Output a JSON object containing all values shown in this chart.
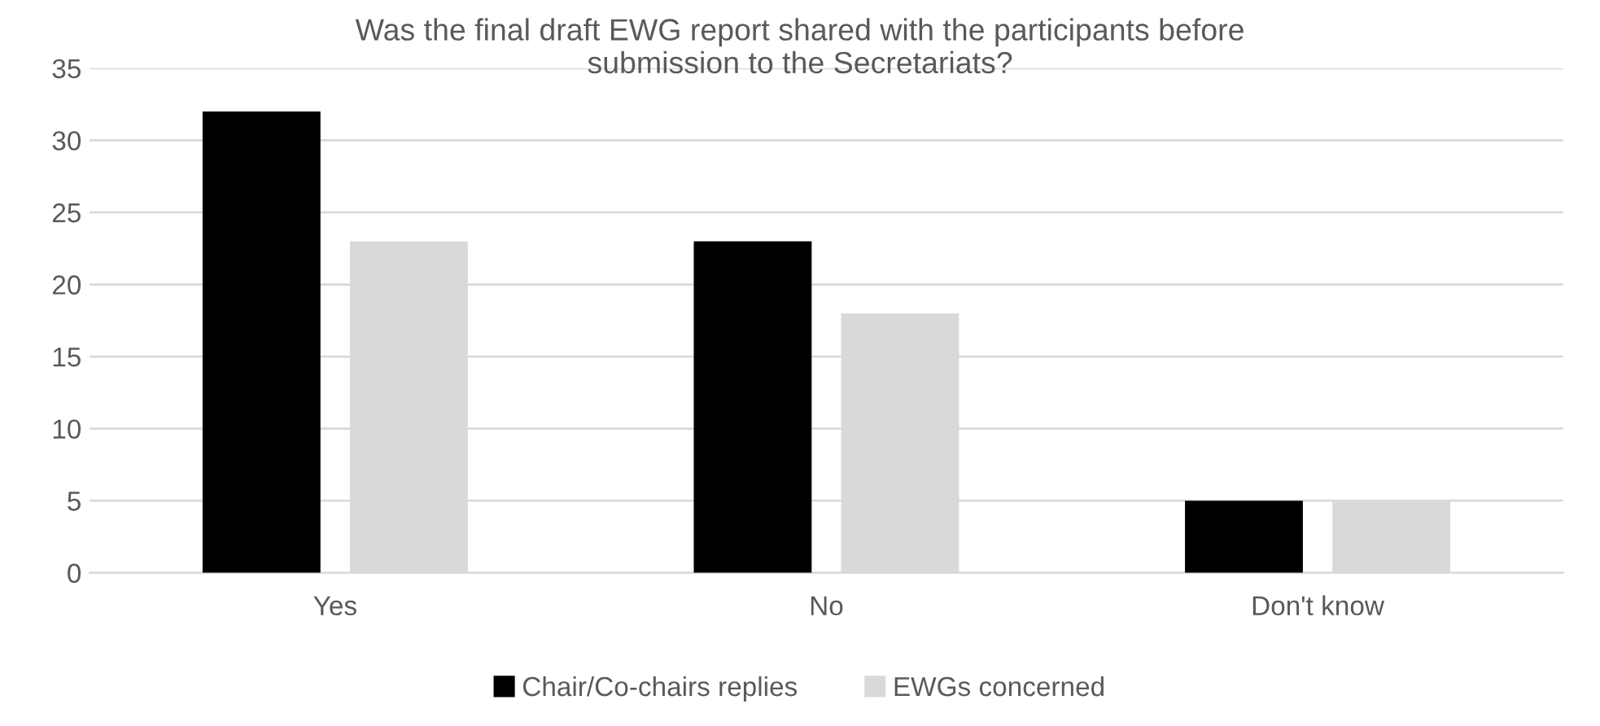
{
  "chart_data": {
    "type": "bar",
    "title": "Was the final draft EWG report shared with the participants before\nsubmission to the Secretariats?",
    "categories": [
      "Yes",
      "No",
      "Don't know"
    ],
    "series": [
      {
        "name": "Chair/Co-chairs replies",
        "color": "#000000",
        "values": [
          32,
          23,
          5
        ]
      },
      {
        "name": "EWGs concerned",
        "color": "#d9d9d9",
        "values": [
          23,
          18,
          5
        ]
      }
    ],
    "ylim": [
      0,
      35
    ],
    "yticks": [
      0,
      5,
      10,
      15,
      20,
      25,
      30,
      35
    ],
    "grid": "y",
    "legend": "bottom"
  }
}
